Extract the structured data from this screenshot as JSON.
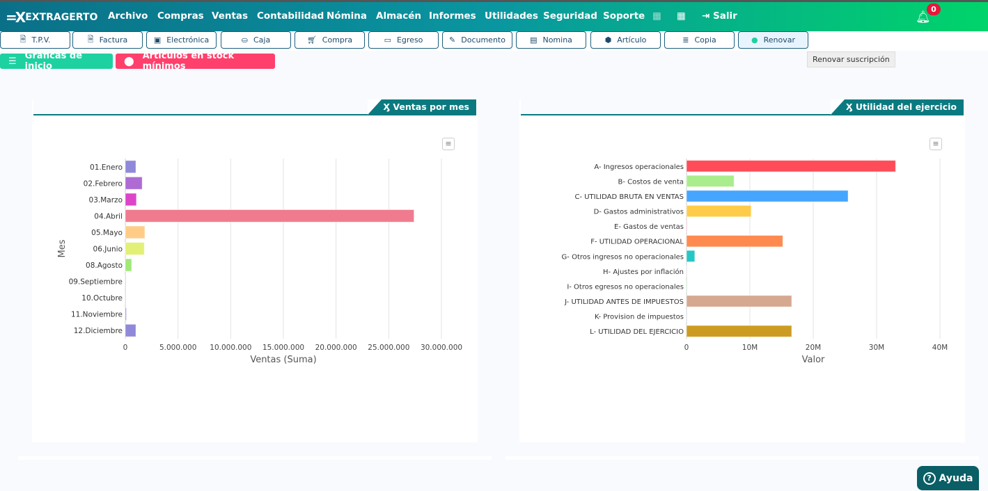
{
  "app": {
    "brand": "EXTRAGERTO",
    "notifications": "0"
  },
  "menu": [
    "Archivo",
    "Compras",
    "Ventas",
    "Contabilidad",
    "Nómina",
    "Almacén",
    "Informes",
    "Utilidades",
    "Seguridad",
    "Soporte"
  ],
  "logout": "Salir",
  "toolbar": [
    {
      "label": "T.P.V.",
      "icon": "file-icon"
    },
    {
      "label": "Factura",
      "icon": "file-icon"
    },
    {
      "label": "Electrónica",
      "icon": "image-icon"
    },
    {
      "label": "Caja",
      "icon": "hand-coin-icon"
    },
    {
      "label": "Compra",
      "icon": "cart-icon"
    },
    {
      "label": "Egreso",
      "icon": "money-icon"
    },
    {
      "label": "Documento",
      "icon": "edit-icon"
    },
    {
      "label": "Nomina",
      "icon": "id-card-icon"
    },
    {
      "label": "Artículo",
      "icon": "box-icon"
    },
    {
      "label": "Copia",
      "icon": "database-icon"
    },
    {
      "label": "Renovar",
      "icon": "user-circle-icon"
    }
  ],
  "tooltip": "Renovar suscripción",
  "tags": {
    "charts": "Gráficas de inicio",
    "stock": "Artículos en stock mínimos"
  },
  "help": "Ayuda",
  "colors": {
    "teal": "#0b7a80",
    "green_tag": "#1dd1a1",
    "red_tag": "#ff3f6c"
  },
  "chart_data": [
    {
      "type": "bar",
      "orientation": "horizontal",
      "title": "Ventas por mes",
      "xlabel": "Ventas (Suma)",
      "ylabel": "Mes",
      "xlim": [
        0,
        30000000
      ],
      "xticks": [
        "0",
        "5.000.000",
        "10.000.000",
        "15.000.000",
        "20.000.000",
        "25.000.000",
        "30.000.000"
      ],
      "grid": true,
      "categories": [
        "01.Enero",
        "02.Febrero",
        "03.Marzo",
        "04.Abril",
        "05.Mayo",
        "06.Junio",
        "08.Agosto",
        "09.Septiembre",
        "10.Octubre",
        "11.Noviembre",
        "12.Diciembre"
      ],
      "values": [
        1000000,
        1600000,
        1050000,
        27400000,
        1850000,
        1800000,
        600000,
        20000,
        10000,
        100000,
        1000000
      ],
      "colors": [
        "#9088d9",
        "#ae6bd3",
        "#dd44c8",
        "#f07b8e",
        "#ffcc88",
        "#e2f077",
        "#a0e878",
        "#7fe0c0",
        "#88ddee",
        "#9a8ae8",
        "#9088d9"
      ]
    },
    {
      "type": "bar",
      "orientation": "horizontal",
      "title": "Utilidad del ejercicio",
      "xlabel": "Valor",
      "ylabel": "",
      "xlim": [
        0,
        40000000
      ],
      "xticks": [
        "0",
        "10M",
        "20M",
        "30M",
        "40M"
      ],
      "grid": true,
      "categories": [
        "A- Ingresos operacionales",
        "B- Costos de venta",
        "C- UTILIDAD BRUTA EN VENTAS",
        "D- Gastos administrativos",
        "E- Gastos de ventas",
        "F- UTILIDAD OPERACIONAL",
        "G- Otros ingresos no operacionales",
        "H- Ajustes por inflación",
        "I- Otros egresos no operacionales",
        "J- UTILIDAD ANTES DE IMPUESTOS",
        "K- Provision de impuestos",
        "L- UTILIDAD DEL EJERCICIO"
      ],
      "values": [
        33000000,
        7500000,
        25500000,
        10200000,
        100000,
        15200000,
        1300000,
        0,
        50000,
        16600000,
        50000,
        16600000
      ],
      "colors": [
        "#ff4c59",
        "#a9ed8c",
        "#45a5ff",
        "#ffcc4a",
        "#f8a0c0",
        "#ff8a50",
        "#26c6c6",
        "#dddddd",
        "#b0e0b0",
        "#d6a890",
        "#c0c8e8",
        "#cc9c22"
      ]
    }
  ]
}
